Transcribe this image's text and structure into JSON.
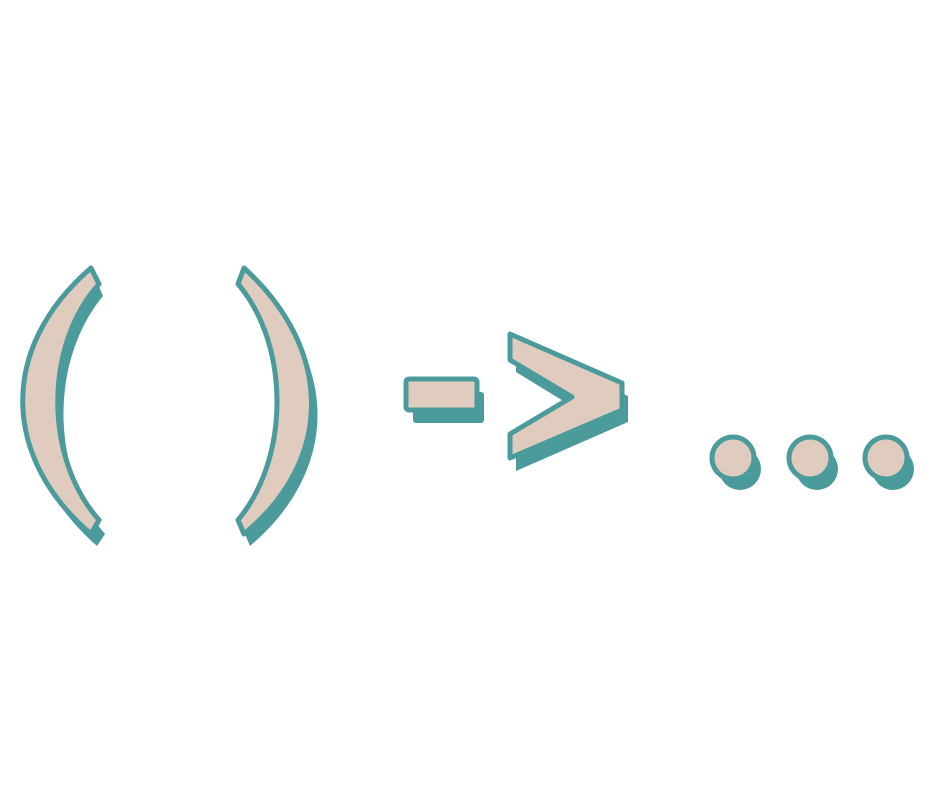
{
  "symbols": {
    "open_paren": "(",
    "close_paren": ")",
    "arrow": "->",
    "ellipsis": "..."
  },
  "colors": {
    "fill": "#e0ccbe",
    "outline": "#4b9a9c",
    "shadow": "#4b9a9c",
    "background": "#ffffff"
  }
}
